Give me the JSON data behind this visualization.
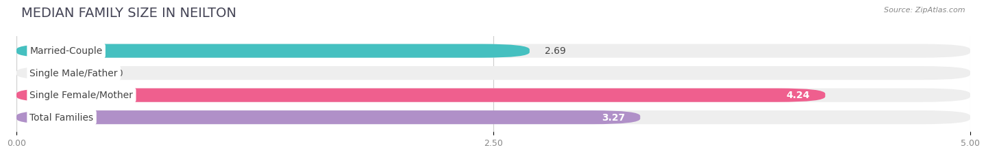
{
  "title": "MEDIAN FAMILY SIZE IN NEILTON",
  "source": "Source: ZipAtlas.com",
  "categories": [
    "Married-Couple",
    "Single Male/Father",
    "Single Female/Mother",
    "Total Families"
  ],
  "values": [
    2.69,
    0.0,
    4.24,
    3.27
  ],
  "bar_colors": [
    "#45c0c0",
    "#a8b8e8",
    "#ef5f8e",
    "#b090c8"
  ],
  "value_colors": [
    "#555555",
    "#555555",
    "#ffffff",
    "#ffffff"
  ],
  "value_inside": [
    false,
    false,
    true,
    true
  ],
  "xlim": [
    0,
    5.0
  ],
  "xticks": [
    0.0,
    2.5,
    5.0
  ],
  "xtick_labels": [
    "0.00",
    "2.50",
    "5.00"
  ],
  "bar_height": 0.62,
  "bar_gap": 0.15,
  "label_fontsize": 10,
  "value_fontsize": 10,
  "title_fontsize": 14,
  "background_color": "#ffffff",
  "bar_bg_color": "#eeeeee",
  "label_bg_color": "#ffffff"
}
